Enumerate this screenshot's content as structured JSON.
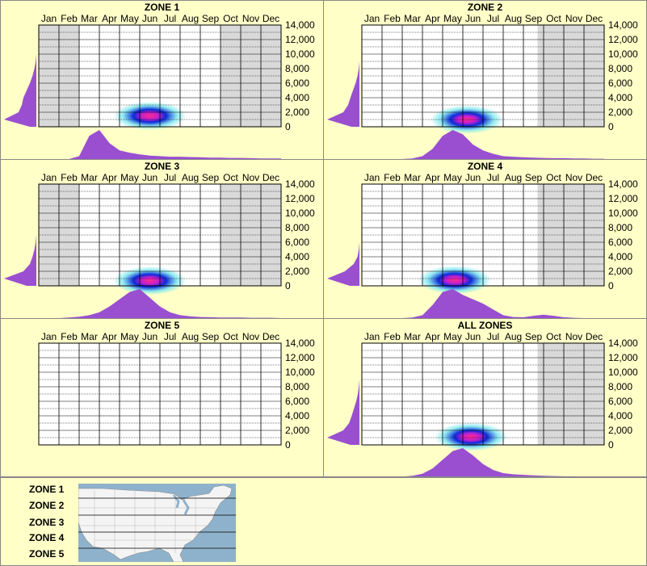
{
  "months": [
    "Jan",
    "Feb",
    "Mar",
    "Apr",
    "May",
    "Jun",
    "Jul",
    "Aug",
    "Sep",
    "Oct",
    "Nov",
    "Dec"
  ],
  "elevation_ticks": [
    "14,000",
    "12,000",
    "10,000",
    "8,000",
    "6,000",
    "4,000",
    "2,000",
    "0"
  ],
  "panels": [
    {
      "title": "ZONE 1",
      "shade_left": 2,
      "shade_right": 3
    },
    {
      "title": "ZONE 2",
      "shade_left": 0,
      "shade_right": 3.3
    },
    {
      "title": "ZONE 3",
      "shade_left": 2,
      "shade_right": 3
    },
    {
      "title": "ZONE 4",
      "shade_left": 0,
      "shade_right": 3.3
    },
    {
      "title": "ZONE 5",
      "shade_left": 0,
      "shade_right": 0
    },
    {
      "title": "ALL ZONES",
      "shade_left": 0,
      "shade_right": 3.3
    }
  ],
  "legend": {
    "zones": [
      "ZONE 1",
      "ZONE 2",
      "ZONE 3",
      "ZONE 4",
      "ZONE 5"
    ]
  },
  "colors": {
    "background": "#ffffc8",
    "grid_shade": "#d9d9d9",
    "distribution": "#9a4fd1",
    "heat_low": "#7fe8ee",
    "heat_mid": "#0a2ad8",
    "heat_high": "#ff2a8a",
    "map_water": "#8fb2cc",
    "map_land": "#f4f4f4"
  },
  "chart_data": [
    {
      "type": "heatmap",
      "title": "ZONE 1",
      "x_categories": [
        "Jan",
        "Feb",
        "Mar",
        "Apr",
        "May",
        "Jun",
        "Jul",
        "Aug",
        "Sep",
        "Oct",
        "Nov",
        "Dec"
      ],
      "y_axis": {
        "ticks": [
          0,
          2000,
          4000,
          6000,
          8000,
          10000,
          12000,
          14000
        ],
        "range": [
          0,
          14000
        ]
      },
      "peak": {
        "month": 6.0,
        "elevation": 1500
      },
      "x_distribution": [
        0,
        0,
        0,
        0,
        0.1,
        0.8,
        1.0,
        0.55,
        0.3,
        0.22,
        0.16,
        0.12,
        0.1,
        0.08,
        0.08,
        0.07,
        0.06,
        0.05,
        0.05,
        0.04,
        0.04,
        0.03,
        0.02,
        0.02,
        0.02
      ],
      "y_distribution": [
        0.2,
        1.0,
        0.55,
        0.45,
        0.4,
        0.3,
        0.2,
        0.12,
        0.06,
        0.02,
        0,
        0,
        0,
        0,
        0
      ]
    },
    {
      "type": "heatmap",
      "title": "ZONE 2",
      "x_categories": [
        "Jan",
        "Feb",
        "Mar",
        "Apr",
        "May",
        "Jun",
        "Jul",
        "Aug",
        "Sep",
        "Oct",
        "Nov",
        "Dec"
      ],
      "y_axis": {
        "ticks": [
          0,
          2000,
          4000,
          6000,
          8000,
          10000,
          12000,
          14000
        ],
        "range": [
          0,
          14000
        ]
      },
      "peak": {
        "month": 5.7,
        "elevation": 1000
      },
      "x_distribution": [
        0,
        0,
        0,
        0,
        0,
        0.02,
        0.1,
        0.35,
        0.8,
        1.0,
        0.85,
        0.5,
        0.3,
        0.18,
        0.1,
        0.08,
        0.06,
        0.05,
        0.04,
        0.03,
        0.03,
        0.02,
        0.02,
        0.01,
        0.01
      ],
      "y_distribution": [
        0.25,
        1.0,
        0.5,
        0.35,
        0.28,
        0.2,
        0.12,
        0.06,
        0.02,
        0,
        0,
        0,
        0,
        0,
        0
      ]
    },
    {
      "type": "heatmap",
      "title": "ZONE 3",
      "x_categories": [
        "Jan",
        "Feb",
        "Mar",
        "Apr",
        "May",
        "Jun",
        "Jul",
        "Aug",
        "Sep",
        "Oct",
        "Nov",
        "Dec"
      ],
      "y_axis": {
        "ticks": [
          0,
          2000,
          4000,
          6000,
          8000,
          10000,
          12000,
          14000
        ],
        "range": [
          0,
          14000
        ]
      },
      "peak": {
        "month": 6.0,
        "elevation": 700
      },
      "x_distribution": [
        0,
        0,
        0,
        0.02,
        0.05,
        0.1,
        0.2,
        0.4,
        0.65,
        0.9,
        1.0,
        0.7,
        0.4,
        0.2,
        0.1,
        0.06,
        0.04,
        0.03,
        0.02,
        0.02,
        0.02,
        0.01,
        0.01,
        0.01,
        0
      ],
      "y_distribution": [
        0.3,
        1.0,
        0.4,
        0.2,
        0.12,
        0.06,
        0.02,
        0,
        0,
        0,
        0,
        0,
        0,
        0,
        0
      ]
    },
    {
      "type": "heatmap",
      "title": "ZONE 4",
      "x_categories": [
        "Jan",
        "Feb",
        "Mar",
        "Apr",
        "May",
        "Jun",
        "Jul",
        "Aug",
        "Sep",
        "Oct",
        "Nov",
        "Dec"
      ],
      "y_axis": {
        "ticks": [
          0,
          2000,
          4000,
          6000,
          8000,
          10000,
          12000,
          14000
        ],
        "range": [
          0,
          14000
        ]
      },
      "peak": {
        "month": 5.1,
        "elevation": 800
      },
      "x_distribution": [
        0,
        0,
        0,
        0,
        0,
        0.02,
        0.1,
        0.45,
        0.9,
        1.0,
        0.8,
        0.65,
        0.5,
        0.3,
        0.1,
        0.04,
        0.03,
        0.08,
        0.12,
        0.08,
        0.03,
        0.01,
        0,
        0,
        0
      ],
      "y_distribution": [
        0.3,
        1.0,
        0.45,
        0.18,
        0.06,
        0.02,
        0,
        0,
        0,
        0,
        0,
        0,
        0,
        0,
        0
      ]
    },
    {
      "type": "heatmap",
      "title": "ZONE 5",
      "x_categories": [
        "Jan",
        "Feb",
        "Mar",
        "Apr",
        "May",
        "Jun",
        "Jul",
        "Aug",
        "Sep",
        "Oct",
        "Nov",
        "Dec"
      ],
      "y_axis": {
        "ticks": [
          0,
          2000,
          4000,
          6000,
          8000,
          10000,
          12000,
          14000
        ],
        "range": [
          0,
          14000
        ]
      },
      "peak": null,
      "x_distribution": [],
      "y_distribution": []
    },
    {
      "type": "heatmap",
      "title": "ALL ZONES",
      "x_categories": [
        "Jan",
        "Feb",
        "Mar",
        "Apr",
        "May",
        "Jun",
        "Jul",
        "Aug",
        "Sep",
        "Oct",
        "Nov",
        "Dec"
      ],
      "y_axis": {
        "ticks": [
          0,
          2000,
          4000,
          6000,
          8000,
          10000,
          12000,
          14000
        ],
        "range": [
          0,
          14000
        ]
      },
      "peak": {
        "month": 5.9,
        "elevation": 1100
      },
      "x_distribution": [
        0,
        0,
        0,
        0,
        0.02,
        0.05,
        0.12,
        0.3,
        0.6,
        0.9,
        1.0,
        0.75,
        0.45,
        0.25,
        0.14,
        0.1,
        0.08,
        0.06,
        0.05,
        0.04,
        0.03,
        0.03,
        0.02,
        0.02,
        0.01
      ],
      "y_distribution": [
        0.28,
        1.0,
        0.5,
        0.32,
        0.24,
        0.17,
        0.1,
        0.05,
        0.02,
        0,
        0,
        0,
        0,
        0,
        0
      ]
    }
  ]
}
